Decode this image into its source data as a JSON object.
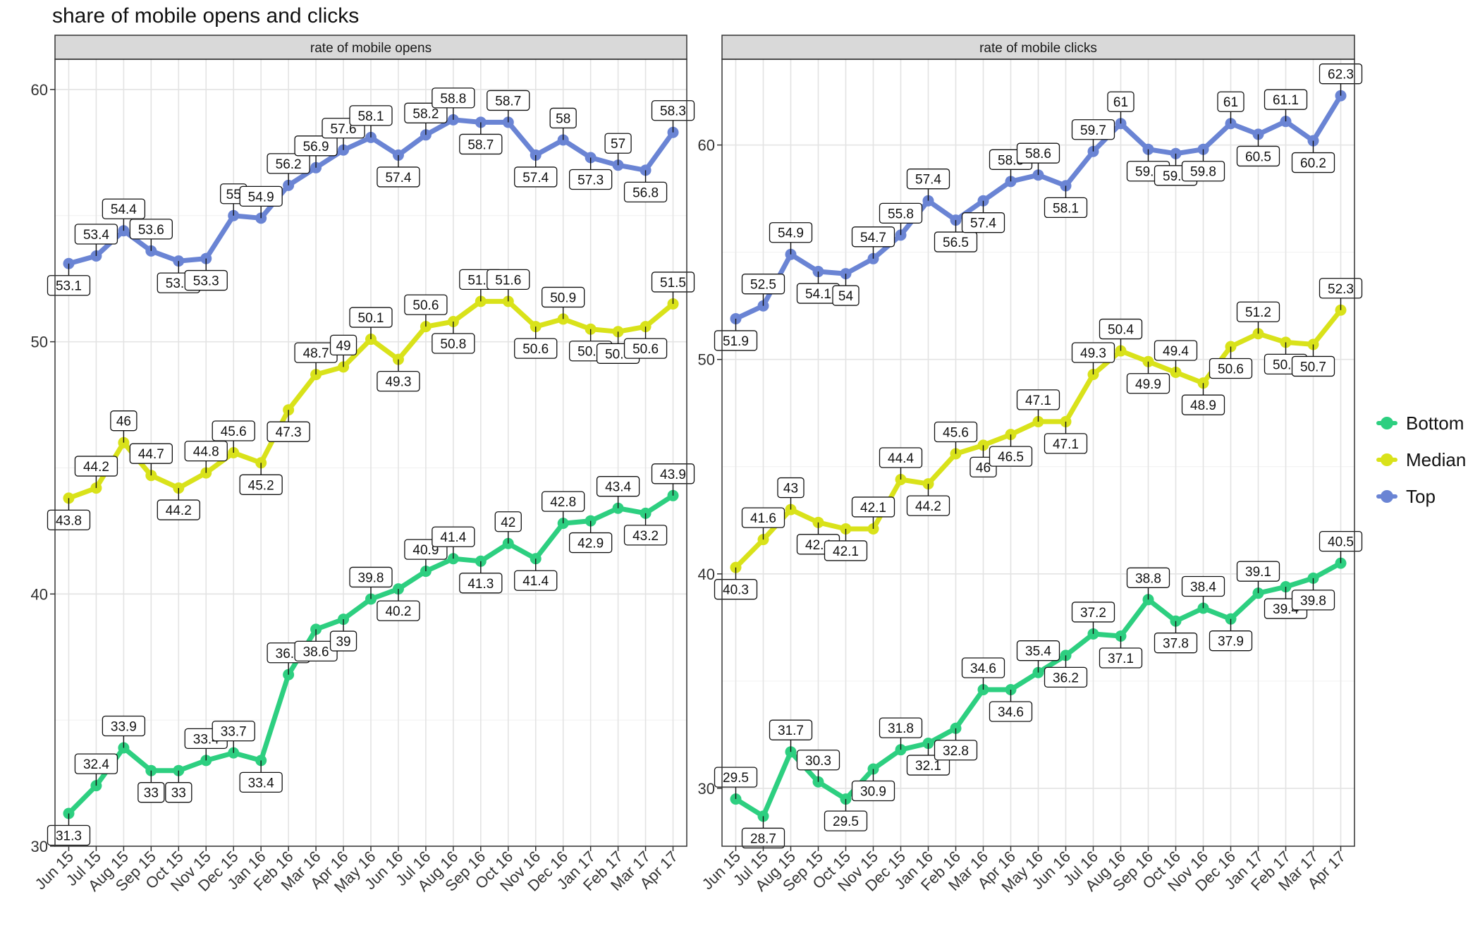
{
  "title": "share of mobile opens and clicks",
  "colors": {
    "Bottom": "#2dcf80",
    "Median": "#d9e21a",
    "Top": "#6a84d4"
  },
  "legend": [
    {
      "name": "Bottom",
      "color": "#2dcf80"
    },
    {
      "name": "Median",
      "color": "#d9e21a"
    },
    {
      "name": "Top",
      "color": "#6a84d4"
    }
  ],
  "chart_data": [
    {
      "type": "line",
      "title": "rate of mobile opens",
      "categories": [
        "Jun 15",
        "Jul 15",
        "Aug 15",
        "Sep 15",
        "Oct 15",
        "Nov 15",
        "Dec 15",
        "Jan 16",
        "Feb 16",
        "Mar 16",
        "Apr 16",
        "May 16",
        "Jun 16",
        "Jul 16",
        "Aug 16",
        "Sep 16",
        "Oct 16",
        "Nov 16",
        "Dec 16",
        "Jan 17",
        "Feb 17",
        "Mar 17",
        "Apr 17"
      ],
      "yticks": [
        30,
        40,
        50,
        60
      ],
      "ylim": [
        30,
        61.2
      ],
      "series": [
        {
          "name": "Bottom",
          "values": [
            31.3,
            32.4,
            33.9,
            33,
            33,
            33.4,
            33.7,
            33.4,
            36.8,
            38.6,
            39,
            39.8,
            40.2,
            40.9,
            41.4,
            41.3,
            42,
            41.4,
            42.8,
            42.9,
            43.4,
            43.2,
            43.9
          ]
        },
        {
          "name": "Median",
          "values": [
            43.8,
            44.2,
            46,
            44.7,
            44.2,
            44.8,
            45.6,
            45.2,
            47.3,
            48.7,
            49,
            50.1,
            49.3,
            50.6,
            50.8,
            51.6,
            51.6,
            50.6,
            50.9,
            50.5,
            50.4,
            50.6,
            51.5
          ]
        },
        {
          "name": "Top",
          "values": [
            53.1,
            53.4,
            54.4,
            53.6,
            53.2,
            53.3,
            55,
            54.9,
            56.2,
            56.9,
            57.6,
            58.1,
            57.4,
            58.2,
            58.8,
            58.7,
            58.7,
            57.4,
            58,
            57.3,
            57,
            56.8,
            58.3
          ]
        }
      ]
    },
    {
      "type": "line",
      "title": "rate of mobile clicks",
      "categories": [
        "Jun 15",
        "Jul 15",
        "Aug 15",
        "Sep 15",
        "Oct 15",
        "Nov 15",
        "Dec 15",
        "Jan 16",
        "Feb 16",
        "Mar 16",
        "Apr 16",
        "May 16",
        "Jun 16",
        "Jul 16",
        "Aug 16",
        "Sep 16",
        "Oct 16",
        "Nov 16",
        "Dec 16",
        "Jan 17",
        "Feb 17",
        "Mar 17",
        "Apr 17"
      ],
      "yticks": [
        30,
        40,
        50,
        60
      ],
      "ylim": [
        27.3,
        64.0
      ],
      "series": [
        {
          "name": "Bottom",
          "values": [
            29.5,
            28.7,
            31.7,
            30.3,
            29.5,
            30.9,
            31.8,
            32.1,
            32.8,
            34.6,
            34.6,
            35.4,
            36.2,
            37.2,
            37.1,
            38.8,
            37.8,
            38.4,
            37.9,
            39.1,
            39.4,
            39.8,
            40.5
          ]
        },
        {
          "name": "Median",
          "values": [
            40.3,
            41.6,
            43,
            42.4,
            42.1,
            42.1,
            44.4,
            44.2,
            45.6,
            46,
            46.5,
            47.1,
            47.1,
            49.3,
            50.4,
            49.9,
            49.4,
            48.9,
            50.6,
            51.2,
            50.8,
            50.7,
            52.3
          ]
        },
        {
          "name": "Top",
          "values": [
            51.9,
            52.5,
            54.9,
            54.1,
            54,
            54.7,
            55.8,
            57.4,
            56.5,
            57.4,
            58.3,
            58.6,
            58.1,
            59.7,
            61,
            59.8,
            59.6,
            59.8,
            61,
            60.5,
            61.1,
            60.2,
            62.3
          ]
        }
      ]
    }
  ]
}
